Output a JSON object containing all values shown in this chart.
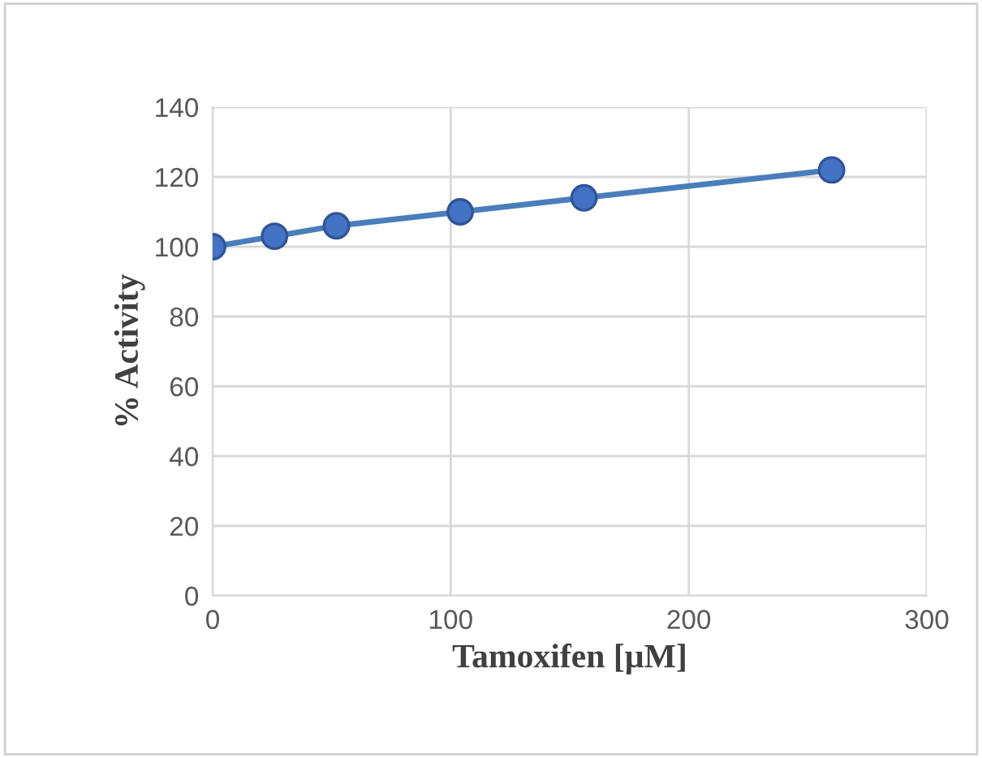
{
  "chart_data": {
    "type": "line",
    "xlabel": "Tamoxifen [µM]",
    "ylabel": "% Activity",
    "x": [
      0,
      26,
      52,
      104,
      156,
      260
    ],
    "series": [
      {
        "color": "#4a7ebb",
        "values": [
          100,
          103,
          106,
          110,
          114,
          122
        ]
      }
    ],
    "xlim": [
      0,
      300
    ],
    "xticks": [
      0,
      100,
      200,
      300
    ],
    "ylim": [
      0,
      140
    ],
    "yticks": [
      0,
      20,
      40,
      60,
      80,
      100,
      120,
      140
    ],
    "grid": true,
    "marker": "circle",
    "line_style": "solid"
  }
}
